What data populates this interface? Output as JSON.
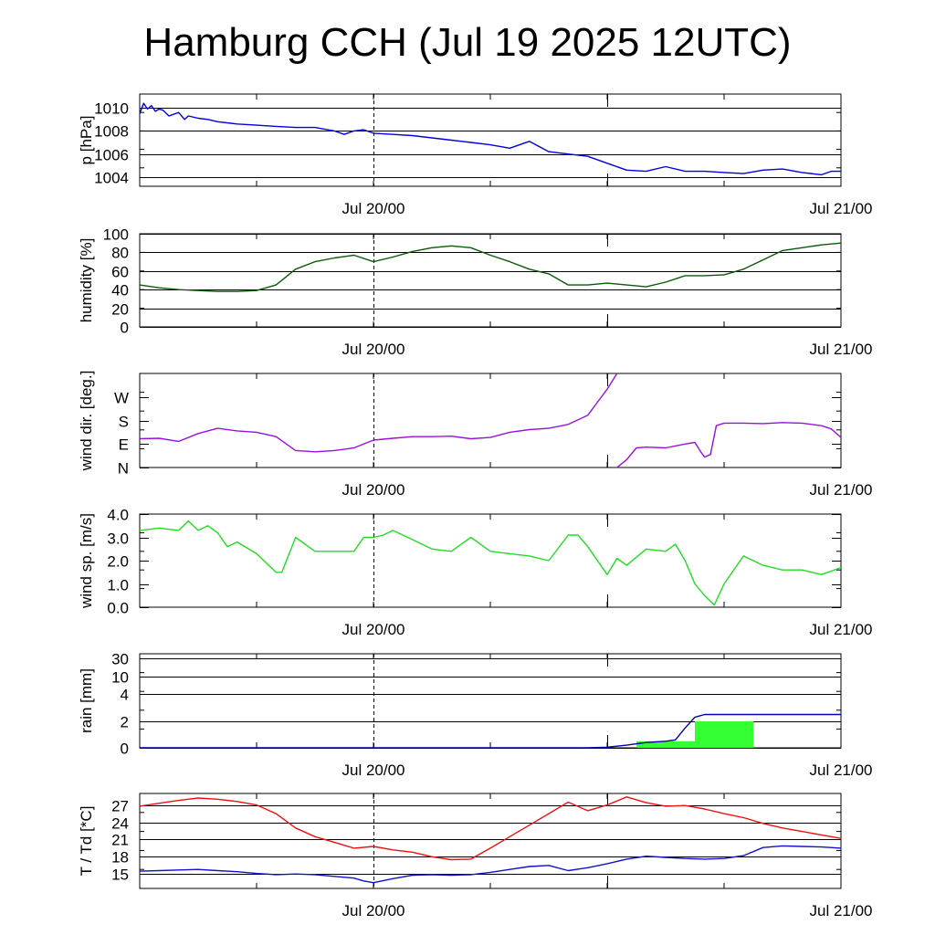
{
  "title": "Hamburg CCH (Jul 19 2025 12UTC)",
  "colors": {
    "pressure": "#0000dd",
    "humidity": "#0a5a0a",
    "wind_dir": "#9a10e0",
    "wind_speed": "#22dd22",
    "rain_bar": "#33ff33",
    "rain_cum": "#0000aa",
    "temperature": "#ee1111",
    "dewpoint": "#1111cc",
    "grid": "#000000"
  },
  "chart_data": [
    {
      "type": "line",
      "id": "pressure",
      "ylabel": "p [hPa]",
      "xlim": [
        0,
        36
      ],
      "ylim": [
        1003.2,
        1011.2
      ],
      "yticks": [
        1004,
        1006,
        1008,
        1010
      ],
      "ytick_labels": [
        "1004",
        "1006",
        "1008",
        "1010"
      ],
      "xtick_labels": [
        "Jul 20/00",
        "Jul 21/00"
      ],
      "xtick_hours": [
        12,
        36
      ],
      "series": [
        {
          "x": [
            0,
            0.2,
            0.4,
            0.6,
            0.8,
            1.0,
            1.2,
            1.5,
            2.0,
            2.3,
            2.5,
            3.0,
            3.5,
            4,
            5,
            6,
            7,
            8,
            9,
            10,
            10.5,
            11,
            11.5,
            12,
            13,
            14,
            15,
            16,
            17,
            18,
            19,
            20,
            21,
            22,
            23,
            24,
            25,
            26,
            27,
            28,
            29,
            30,
            31,
            32,
            33,
            34,
            35,
            35.5,
            36
          ],
          "y": [
            1009.5,
            1010.4,
            1009.9,
            1010.2,
            1009.7,
            1009.9,
            1009.8,
            1009.3,
            1009.6,
            1009.0,
            1009.3,
            1009.1,
            1009.0,
            1008.8,
            1008.6,
            1008.5,
            1008.4,
            1008.3,
            1008.3,
            1008.0,
            1007.7,
            1008.0,
            1008.1,
            1007.8,
            1007.7,
            1007.6,
            1007.4,
            1007.2,
            1007.0,
            1006.8,
            1006.5,
            1007.1,
            1006.2,
            1006.0,
            1005.8,
            1005.2,
            1004.6,
            1004.5,
            1004.9,
            1004.5,
            1004.5,
            1004.4,
            1004.3,
            1004.6,
            1004.7,
            1004.4,
            1004.2,
            1004.5,
            1004.5
          ]
        }
      ]
    },
    {
      "type": "line",
      "id": "humidity",
      "ylabel": "humidity [%]",
      "xlim": [
        0,
        36
      ],
      "ylim": [
        0,
        100
      ],
      "yticks": [
        0,
        20,
        40,
        60,
        80,
        100
      ],
      "ytick_labels": [
        "0",
        "20",
        "40",
        "60",
        "80",
        "100"
      ],
      "xtick_labels": [
        "Jul 20/00",
        "Jul 21/00"
      ],
      "xtick_hours": [
        12,
        36
      ],
      "series": [
        {
          "x": [
            0,
            1,
            2,
            3,
            4,
            5,
            6,
            7,
            8,
            9,
            10,
            11,
            12,
            13,
            14,
            15,
            16,
            17,
            18,
            19,
            20,
            21,
            22,
            23,
            24,
            25,
            26,
            27,
            28,
            29,
            30,
            31,
            32,
            33,
            34,
            35,
            36
          ],
          "y": [
            45,
            42,
            40,
            39,
            38,
            38,
            39,
            45,
            62,
            70,
            74,
            77,
            70,
            75,
            81,
            85,
            87,
            85,
            77,
            70,
            62,
            57,
            45,
            45,
            47,
            45,
            43,
            48,
            55,
            55,
            56,
            62,
            72,
            82,
            85,
            88,
            90
          ]
        }
      ]
    },
    {
      "type": "line",
      "id": "wind_dir",
      "ylabel": "wind dir. [deg.]",
      "xlim": [
        0,
        36
      ],
      "ylim": [
        0,
        360
      ],
      "yticks": [
        0,
        90,
        180,
        270
      ],
      "ytick_labels": [
        "N",
        "E",
        "S",
        "W"
      ],
      "xtick_labels": [
        "Jul 20/00",
        "Jul 21/00"
      ],
      "xtick_hours": [
        12,
        36
      ],
      "series": [
        {
          "x": [
            0,
            1,
            2,
            3,
            4,
            5,
            6,
            7,
            8,
            9,
            10,
            11,
            12,
            13,
            14,
            15,
            16,
            17,
            18,
            19,
            20,
            21,
            22,
            23,
            23.5,
            24,
            24.5
          ],
          "y": [
            110,
            112,
            100,
            130,
            150,
            140,
            135,
            118,
            65,
            60,
            65,
            75,
            105,
            112,
            118,
            118,
            120,
            110,
            115,
            135,
            145,
            150,
            165,
            200,
            250,
            300,
            360
          ]
        },
        {
          "x": [
            24.5,
            25,
            25.5,
            26,
            27,
            28,
            28.5,
            28.8,
            29,
            29.3,
            29.6,
            30,
            31,
            32,
            33,
            34,
            35,
            35.5,
            36
          ],
          "y": [
            0,
            30,
            75,
            78,
            75,
            90,
            96,
            60,
            40,
            50,
            160,
            170,
            170,
            168,
            172,
            170,
            160,
            148,
            115
          ]
        }
      ]
    },
    {
      "type": "line",
      "id": "wind_speed",
      "ylabel": "wind sp. [m/s]",
      "xlim": [
        0,
        36
      ],
      "ylim": [
        0,
        4
      ],
      "yticks": [
        0,
        1,
        2,
        3,
        4
      ],
      "ytick_labels": [
        "0.0",
        "1.0",
        "2.0",
        "3.0",
        "4.0"
      ],
      "xtick_labels": [
        "Jul 20/00",
        "Jul 21/00"
      ],
      "xtick_hours": [
        12,
        36
      ],
      "series": [
        {
          "x": [
            0,
            1,
            2,
            2.5,
            3,
            3.5,
            4,
            4.5,
            5,
            6,
            7,
            7.3,
            8,
            9,
            10,
            11,
            11.5,
            12,
            12.5,
            13,
            14,
            15,
            16,
            17,
            18,
            19,
            20,
            21,
            22,
            22.5,
            23,
            24,
            24.5,
            25,
            26,
            27,
            27.5,
            28,
            28.5,
            29,
            29.5,
            30,
            31,
            32,
            33,
            34,
            35,
            36
          ],
          "y": [
            3.3,
            3.4,
            3.3,
            3.7,
            3.3,
            3.5,
            3.2,
            2.6,
            2.8,
            2.3,
            1.5,
            1.5,
            3.0,
            2.4,
            2.4,
            2.4,
            3.0,
            3.0,
            3.1,
            3.3,
            2.9,
            2.5,
            2.4,
            3.0,
            2.4,
            2.3,
            2.2,
            2.0,
            3.1,
            3.1,
            2.6,
            1.4,
            2.1,
            1.8,
            2.5,
            2.4,
            2.7,
            2.0,
            1.0,
            0.5,
            0.1,
            1.0,
            2.2,
            1.8,
            1.6,
            1.6,
            1.4,
            1.7
          ]
        }
      ]
    },
    {
      "type": "bar",
      "id": "rain",
      "ylabel": "rain [mm]",
      "xlim": [
        0,
        36
      ],
      "ylim": [
        0,
        40
      ],
      "scale": "custom",
      "ytick_pos": [
        0,
        2,
        4,
        10,
        30
      ],
      "ytick_labels": [
        "0",
        "2",
        "4",
        "10",
        "30"
      ],
      "xtick_labels": [
        "Jul 20/00",
        "Jul 21/00"
      ],
      "xtick_hours": [
        12,
        36
      ],
      "bars": [
        {
          "x0": 25.5,
          "x1": 28.5,
          "value": 0.5
        },
        {
          "x0": 28.5,
          "x1": 31.5,
          "value": 2.0
        }
      ],
      "series": [
        {
          "name": "cumulative",
          "x": [
            0,
            23,
            24,
            25,
            26,
            27,
            27.5,
            28,
            28.5,
            29,
            36
          ],
          "y": [
            0,
            0,
            0.05,
            0.2,
            0.4,
            0.5,
            0.6,
            1.5,
            2.3,
            2.5,
            2.5
          ]
        }
      ]
    },
    {
      "type": "line",
      "id": "temperature",
      "ylabel": "T / Td [*C]",
      "xlim": [
        0,
        36
      ],
      "ylim": [
        12.5,
        29
      ],
      "yticks": [
        15,
        18,
        21,
        24,
        27
      ],
      "ytick_labels": [
        "15",
        "18",
        "21",
        "24",
        "27"
      ],
      "xtick_labels": [
        "Jul 20/00",
        "Jul 21/00"
      ],
      "xtick_hours": [
        12,
        36
      ],
      "series": [
        {
          "name": "T",
          "x": [
            0,
            1,
            2,
            3,
            4,
            5,
            6,
            7,
            8,
            9,
            10,
            11,
            12,
            13,
            14,
            15,
            16,
            17,
            18,
            19,
            20,
            21,
            22,
            23,
            24,
            25,
            26,
            27,
            28,
            29,
            30,
            31,
            32,
            33,
            34,
            35,
            36
          ],
          "y": [
            26.8,
            27.3,
            27.8,
            28.2,
            28.0,
            27.6,
            27.0,
            25.5,
            23.0,
            21.5,
            20.5,
            19.5,
            19.8,
            19.2,
            18.8,
            18.0,
            17.5,
            17.6,
            19.5,
            21.5,
            23.5,
            25.5,
            27.5,
            26.0,
            27.0,
            28.4,
            27.4,
            26.8,
            26.9,
            26.3,
            25.5,
            24.8,
            23.8,
            23.0,
            22.4,
            21.8,
            21.2
          ]
        },
        {
          "name": "Td",
          "x": [
            0,
            1,
            2,
            3,
            4,
            5,
            6,
            7,
            8,
            9,
            10,
            11,
            11.5,
            12,
            13,
            14,
            15,
            16,
            17,
            18,
            19,
            20,
            21,
            22,
            23,
            24,
            25,
            26,
            27,
            28,
            29,
            30,
            31,
            32,
            33,
            34,
            35,
            36
          ],
          "y": [
            15.5,
            15.6,
            15.7,
            15.8,
            15.6,
            15.4,
            15.1,
            14.9,
            15.0,
            14.9,
            14.6,
            14.3,
            13.8,
            13.5,
            14.2,
            14.8,
            14.9,
            14.8,
            14.9,
            15.3,
            15.8,
            16.3,
            16.5,
            15.6,
            16.1,
            16.8,
            17.6,
            18.1,
            17.9,
            17.7,
            17.6,
            17.7,
            18.2,
            19.6,
            19.9,
            19.8,
            19.7,
            19.5
          ]
        }
      ]
    }
  ]
}
